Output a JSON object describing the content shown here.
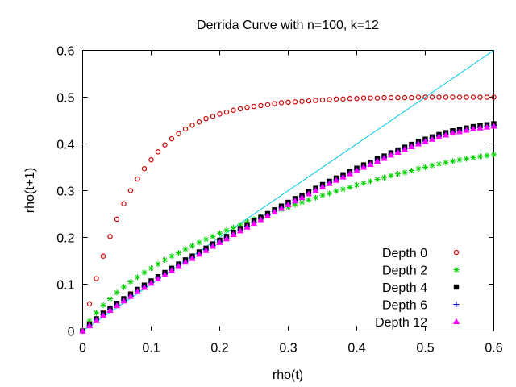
{
  "chart_data": {
    "type": "scatter",
    "title": "Derrida Curve with n=100, k=12",
    "xlabel": "rho(t)",
    "ylabel": "rho(t+1)",
    "xlim": [
      0,
      0.6
    ],
    "ylim": [
      0,
      0.6
    ],
    "x_ticks": [
      0,
      0.1,
      0.2,
      0.3,
      0.4,
      0.5,
      0.6
    ],
    "y_ticks": [
      0,
      0.1,
      0.2,
      0.3,
      0.4,
      0.5,
      0.6
    ],
    "x_tick_labels": [
      "0",
      "0.1",
      "0.2",
      "0.3",
      "0.4",
      "0.5",
      "0.6"
    ],
    "y_tick_labels": [
      "0",
      "0.1",
      "0.2",
      "0.3",
      "0.4",
      "0.5",
      "0.6"
    ],
    "grid": false,
    "legend_position": "bottom-right",
    "reference_line": {
      "name": "y = x",
      "color": "#00c8e8",
      "from": [
        0,
        0
      ],
      "to": [
        0.6,
        0.6
      ]
    },
    "series": [
      {
        "name": "Depth 0",
        "marker": "circle",
        "color": "#d00000",
        "x": [
          0.0,
          0.01,
          0.02,
          0.03,
          0.04,
          0.05,
          0.06,
          0.07,
          0.08,
          0.09,
          0.1,
          0.11,
          0.12,
          0.13,
          0.14,
          0.15,
          0.16,
          0.17,
          0.18,
          0.19,
          0.2,
          0.21,
          0.22,
          0.23,
          0.24,
          0.25,
          0.26,
          0.27,
          0.28,
          0.29,
          0.3,
          0.31,
          0.32,
          0.33,
          0.34,
          0.35,
          0.36,
          0.37,
          0.38,
          0.39,
          0.4,
          0.41,
          0.42,
          0.43,
          0.44,
          0.45,
          0.46,
          0.47,
          0.48,
          0.49,
          0.5,
          0.51,
          0.52,
          0.53,
          0.54,
          0.55,
          0.56,
          0.57,
          0.58,
          0.59,
          0.6
        ],
        "y": [
          0.0,
          0.058,
          0.112,
          0.16,
          0.202,
          0.239,
          0.272,
          0.3,
          0.325,
          0.347,
          0.366,
          0.383,
          0.398,
          0.411,
          0.422,
          0.432,
          0.44,
          0.447,
          0.454,
          0.459,
          0.464,
          0.468,
          0.472,
          0.475,
          0.478,
          0.48,
          0.482,
          0.484,
          0.486,
          0.488,
          0.489,
          0.49,
          0.491,
          0.492,
          0.493,
          0.494,
          0.495,
          0.496,
          0.496,
          0.497,
          0.497,
          0.498,
          0.498,
          0.498,
          0.499,
          0.499,
          0.499,
          0.499,
          0.499,
          0.5,
          0.5,
          0.5,
          0.5,
          0.5,
          0.5,
          0.5,
          0.5,
          0.5,
          0.5,
          0.5,
          0.5
        ]
      },
      {
        "name": "Depth 2",
        "marker": "asterisk",
        "color": "#00d000",
        "x": [
          0.0,
          0.01,
          0.02,
          0.03,
          0.04,
          0.05,
          0.06,
          0.07,
          0.08,
          0.09,
          0.1,
          0.11,
          0.12,
          0.13,
          0.14,
          0.15,
          0.16,
          0.17,
          0.18,
          0.19,
          0.2,
          0.21,
          0.22,
          0.23,
          0.24,
          0.25,
          0.26,
          0.27,
          0.28,
          0.29,
          0.3,
          0.31,
          0.32,
          0.33,
          0.34,
          0.35,
          0.36,
          0.37,
          0.38,
          0.39,
          0.4,
          0.41,
          0.42,
          0.43,
          0.44,
          0.45,
          0.46,
          0.47,
          0.48,
          0.49,
          0.5,
          0.51,
          0.52,
          0.53,
          0.54,
          0.55,
          0.56,
          0.57,
          0.58,
          0.59,
          0.6
        ],
        "y": [
          0.0,
          0.021,
          0.039,
          0.055,
          0.069,
          0.082,
          0.094,
          0.105,
          0.115,
          0.125,
          0.134,
          0.143,
          0.152,
          0.16,
          0.167,
          0.175,
          0.182,
          0.189,
          0.196,
          0.202,
          0.209,
          0.215,
          0.221,
          0.227,
          0.233,
          0.239,
          0.244,
          0.25,
          0.255,
          0.26,
          0.265,
          0.27,
          0.275,
          0.28,
          0.285,
          0.29,
          0.294,
          0.299,
          0.303,
          0.307,
          0.312,
          0.316,
          0.32,
          0.324,
          0.328,
          0.332,
          0.336,
          0.339,
          0.343,
          0.347,
          0.35,
          0.354,
          0.357,
          0.36,
          0.363,
          0.366,
          0.368,
          0.371,
          0.373,
          0.375,
          0.377
        ]
      },
      {
        "name": "Depth 4",
        "marker": "square",
        "color": "#000000",
        "x": [
          0.0,
          0.01,
          0.02,
          0.03,
          0.04,
          0.05,
          0.06,
          0.07,
          0.08,
          0.09,
          0.1,
          0.11,
          0.12,
          0.13,
          0.14,
          0.15,
          0.16,
          0.17,
          0.18,
          0.19,
          0.2,
          0.21,
          0.22,
          0.23,
          0.24,
          0.25,
          0.26,
          0.27,
          0.28,
          0.29,
          0.3,
          0.31,
          0.32,
          0.33,
          0.34,
          0.35,
          0.36,
          0.37,
          0.38,
          0.39,
          0.4,
          0.41,
          0.42,
          0.43,
          0.44,
          0.45,
          0.46,
          0.47,
          0.48,
          0.49,
          0.5,
          0.51,
          0.52,
          0.53,
          0.54,
          0.55,
          0.56,
          0.57,
          0.58,
          0.59,
          0.6
        ],
        "y": [
          0.0,
          0.014,
          0.026,
          0.038,
          0.049,
          0.059,
          0.069,
          0.079,
          0.089,
          0.098,
          0.107,
          0.116,
          0.125,
          0.134,
          0.143,
          0.152,
          0.16,
          0.169,
          0.177,
          0.186,
          0.194,
          0.202,
          0.211,
          0.219,
          0.227,
          0.235,
          0.243,
          0.251,
          0.259,
          0.267,
          0.275,
          0.283,
          0.29,
          0.298,
          0.305,
          0.313,
          0.32,
          0.327,
          0.334,
          0.341,
          0.348,
          0.355,
          0.361,
          0.368,
          0.374,
          0.381,
          0.387,
          0.393,
          0.399,
          0.405,
          0.41,
          0.415,
          0.42,
          0.424,
          0.428,
          0.431,
          0.434,
          0.437,
          0.439,
          0.441,
          0.443
        ]
      },
      {
        "name": "Depth 6",
        "marker": "plus",
        "color": "#0000e0",
        "x": [
          0.0,
          0.01,
          0.02,
          0.03,
          0.04,
          0.05,
          0.06,
          0.07,
          0.08,
          0.09,
          0.1,
          0.11,
          0.12,
          0.13,
          0.14,
          0.15,
          0.16,
          0.17,
          0.18,
          0.19,
          0.2,
          0.21,
          0.22,
          0.23,
          0.24,
          0.25,
          0.26,
          0.27,
          0.28,
          0.29,
          0.3,
          0.31,
          0.32,
          0.33,
          0.34,
          0.35,
          0.36,
          0.37,
          0.38,
          0.39,
          0.4,
          0.41,
          0.42,
          0.43,
          0.44,
          0.45,
          0.46,
          0.47,
          0.48,
          0.49,
          0.5,
          0.51,
          0.52,
          0.53,
          0.54,
          0.55,
          0.56,
          0.57,
          0.58,
          0.59,
          0.6
        ],
        "y": [
          0.0,
          0.012,
          0.024,
          0.035,
          0.046,
          0.056,
          0.066,
          0.076,
          0.086,
          0.095,
          0.104,
          0.113,
          0.122,
          0.131,
          0.14,
          0.149,
          0.157,
          0.166,
          0.174,
          0.183,
          0.191,
          0.199,
          0.208,
          0.216,
          0.224,
          0.232,
          0.24,
          0.248,
          0.256,
          0.264,
          0.272,
          0.28,
          0.287,
          0.295,
          0.302,
          0.31,
          0.317,
          0.324,
          0.331,
          0.338,
          0.345,
          0.352,
          0.358,
          0.365,
          0.371,
          0.378,
          0.384,
          0.39,
          0.396,
          0.402,
          0.407,
          0.412,
          0.417,
          0.421,
          0.425,
          0.428,
          0.431,
          0.434,
          0.436,
          0.438,
          0.44
        ]
      },
      {
        "name": "Depth 12",
        "marker": "triangle",
        "color": "#ff00ff",
        "x": [
          0.0,
          0.01,
          0.02,
          0.03,
          0.04,
          0.05,
          0.06,
          0.07,
          0.08,
          0.09,
          0.1,
          0.11,
          0.12,
          0.13,
          0.14,
          0.15,
          0.16,
          0.17,
          0.18,
          0.19,
          0.2,
          0.21,
          0.22,
          0.23,
          0.24,
          0.25,
          0.26,
          0.27,
          0.28,
          0.29,
          0.3,
          0.31,
          0.32,
          0.33,
          0.34,
          0.35,
          0.36,
          0.37,
          0.38,
          0.39,
          0.4,
          0.41,
          0.42,
          0.43,
          0.44,
          0.45,
          0.46,
          0.47,
          0.48,
          0.49,
          0.5,
          0.51,
          0.52,
          0.53,
          0.54,
          0.55,
          0.56,
          0.57,
          0.58,
          0.59,
          0.6
        ],
        "y": [
          0.0,
          0.011,
          0.022,
          0.033,
          0.044,
          0.054,
          0.064,
          0.074,
          0.084,
          0.093,
          0.102,
          0.111,
          0.12,
          0.129,
          0.138,
          0.147,
          0.155,
          0.164,
          0.172,
          0.181,
          0.189,
          0.197,
          0.206,
          0.214,
          0.222,
          0.23,
          0.238,
          0.246,
          0.254,
          0.262,
          0.27,
          0.278,
          0.285,
          0.293,
          0.3,
          0.308,
          0.315,
          0.322,
          0.329,
          0.336,
          0.343,
          0.35,
          0.356,
          0.363,
          0.369,
          0.376,
          0.382,
          0.388,
          0.394,
          0.4,
          0.405,
          0.41,
          0.415,
          0.419,
          0.423,
          0.426,
          0.429,
          0.432,
          0.434,
          0.436,
          0.438
        ]
      }
    ]
  }
}
